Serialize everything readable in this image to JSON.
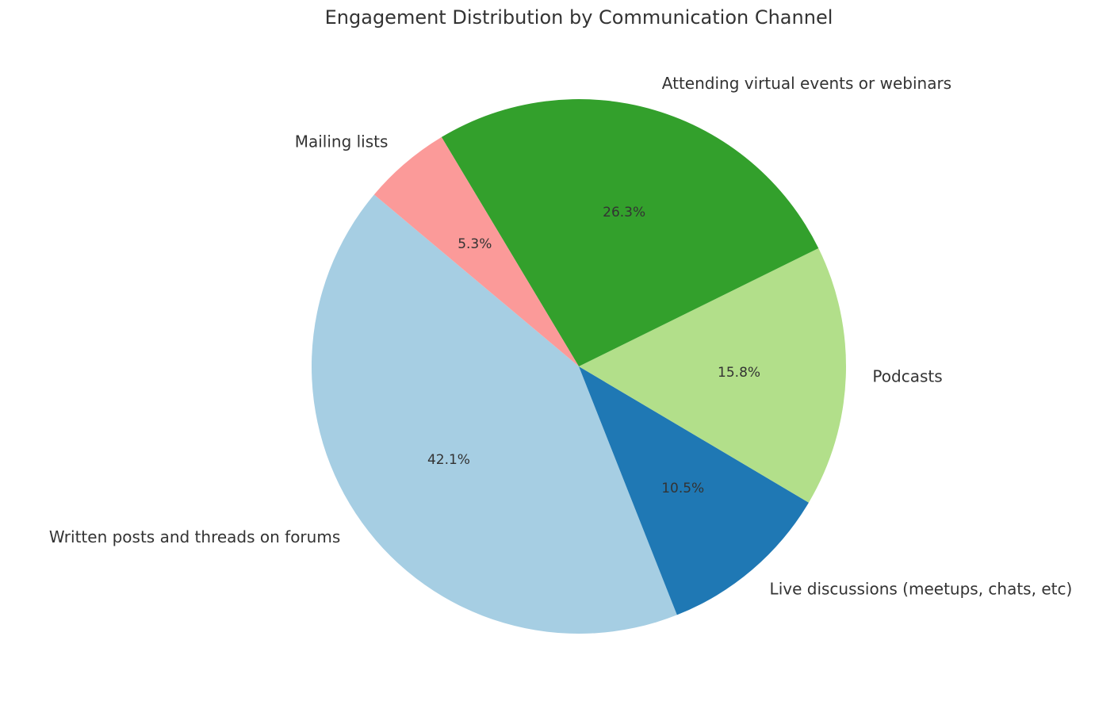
{
  "chart_data": {
    "type": "pie",
    "title": "Engagement Distribution by Communication Channel",
    "start_angle_deg": 140,
    "direction": "counterclockwise",
    "slices": [
      {
        "label": "Written posts and threads on forums",
        "value": 42.1,
        "pct_label": "42.1%",
        "color": "#a6cee3"
      },
      {
        "label": "Live discussions (meetups, chats, etc)",
        "value": 10.5,
        "pct_label": "10.5%",
        "color": "#1f78b4"
      },
      {
        "label": "Podcasts",
        "value": 15.8,
        "pct_label": "15.8%",
        "color": "#b2df8a"
      },
      {
        "label": "Attending virtual events or webinars",
        "value": 26.3,
        "pct_label": "26.3%",
        "color": "#33a02c"
      },
      {
        "label": "Mailing lists",
        "value": 5.3,
        "pct_label": "5.3%",
        "color": "#fb9a99"
      }
    ]
  }
}
